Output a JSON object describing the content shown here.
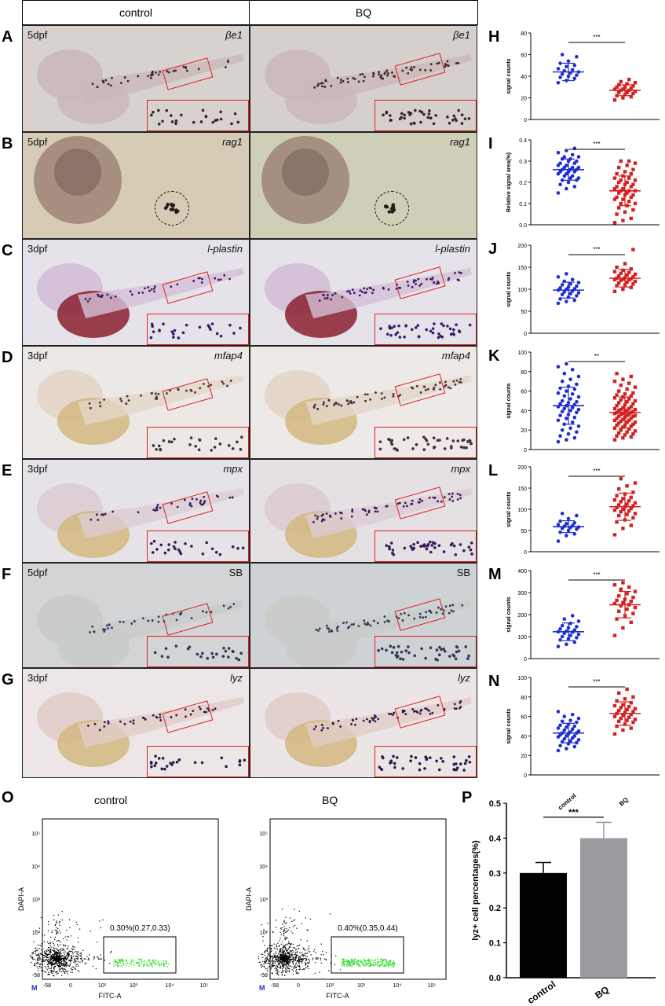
{
  "columns": {
    "control": "control",
    "treatment": "BQ"
  },
  "rows": [
    {
      "label": "A",
      "stage": "5dpf",
      "gene": "βe1",
      "gene_italic": true,
      "control_bg": "#d8d2cf",
      "treat_bg": "#d6d0cd",
      "embryo": "#cbb8b8",
      "stain": "#3a2230"
    },
    {
      "label": "B",
      "stage": "5dpf",
      "gene": "rag1",
      "gene_italic": true,
      "control_bg": "#d6cbb5",
      "treat_bg": "#cfcfb8",
      "embryo": "#9a8070",
      "stain": "#2a1a1a"
    },
    {
      "label": "C",
      "stage": "3dpf",
      "gene": "l-plastin",
      "gene_italic": true,
      "control_bg": "#e6e2ea",
      "treat_bg": "#e6e2ea",
      "embryo": "#d4bfd6",
      "stain": "#3a1a6a"
    },
    {
      "label": "D",
      "stage": "3dpf",
      "gene": "mfap4",
      "gene_italic": true,
      "control_bg": "#ece8e6",
      "treat_bg": "#ece9e6",
      "embryo": "#e4d6c8",
      "stain": "#4a2a40"
    },
    {
      "label": "E",
      "stage": "3dpf",
      "gene": "mpx",
      "gene_italic": true,
      "control_bg": "#e6e3e8",
      "treat_bg": "#e4e0e4",
      "embryo": "#dcccd4",
      "stain": "#3a1a5a"
    },
    {
      "label": "F",
      "stage": "5dpf",
      "gene": "SB",
      "gene_italic": false,
      "control_bg": "#d2d4d6",
      "treat_bg": "#cfd2d4",
      "embryo": "#c8cbc8",
      "stain": "#2a3a5a"
    },
    {
      "label": "G",
      "stage": "3dpf",
      "gene": "lyz",
      "gene_italic": true,
      "control_bg": "#ece6e6",
      "treat_bg": "#ebe5e5",
      "embryo": "#e2ccc8",
      "stain": "#2a1a4a"
    }
  ],
  "scatter_panels": [
    {
      "label": "H",
      "ylabel": "signal counts",
      "ylim": [
        0,
        80
      ],
      "yticks": [
        "0",
        "20",
        "40",
        "60",
        "80"
      ],
      "sig": "***",
      "control": {
        "mean": 44,
        "sd": 8,
        "n": 18,
        "values": [
          34,
          36,
          38,
          39,
          40,
          41,
          42,
          43,
          44,
          45,
          46,
          47,
          49,
          50,
          52,
          54,
          58,
          60
        ]
      },
      "treatment": {
        "mean": 27,
        "sd": 5,
        "n": 22,
        "values": [
          18,
          20,
          21,
          22,
          23,
          24,
          25,
          25,
          26,
          27,
          27,
          28,
          28,
          29,
          30,
          30,
          31,
          32,
          33,
          34,
          35,
          37
        ]
      }
    },
    {
      "label": "I",
      "ylabel": "Relative signal area(%)",
      "ylim": [
        0,
        0.4
      ],
      "yticks": [
        "0.0",
        "0.1",
        "0.2",
        "0.3",
        "0.4"
      ],
      "sig": "***",
      "control": {
        "mean": 0.26,
        "sd": 0.05,
        "n": 36,
        "values": [
          0.15,
          0.17,
          0.18,
          0.19,
          0.2,
          0.21,
          0.21,
          0.22,
          0.22,
          0.23,
          0.23,
          0.24,
          0.24,
          0.25,
          0.25,
          0.25,
          0.26,
          0.26,
          0.26,
          0.27,
          0.27,
          0.27,
          0.28,
          0.28,
          0.29,
          0.29,
          0.3,
          0.3,
          0.31,
          0.31,
          0.32,
          0.32,
          0.33,
          0.34,
          0.35,
          0.36
        ]
      },
      "treatment": {
        "mean": 0.16,
        "sd": 0.07,
        "n": 44,
        "values": [
          0.01,
          0.02,
          0.03,
          0.05,
          0.06,
          0.07,
          0.08,
          0.09,
          0.1,
          0.1,
          0.11,
          0.12,
          0.12,
          0.13,
          0.13,
          0.14,
          0.14,
          0.15,
          0.15,
          0.16,
          0.16,
          0.16,
          0.17,
          0.17,
          0.18,
          0.18,
          0.19,
          0.19,
          0.2,
          0.2,
          0.21,
          0.21,
          0.22,
          0.22,
          0.23,
          0.24,
          0.24,
          0.25,
          0.26,
          0.27,
          0.28,
          0.29,
          0.3,
          0.3
        ]
      }
    },
    {
      "label": "J",
      "ylabel": "signal counts",
      "ylim": [
        0,
        200
      ],
      "yticks": [
        "0",
        "50",
        "100",
        "150",
        "200"
      ],
      "sig": "***",
      "control": {
        "mean": 98,
        "sd": 18,
        "n": 24,
        "values": [
          68,
          72,
          75,
          78,
          82,
          85,
          88,
          90,
          92,
          94,
          96,
          98,
          100,
          101,
          103,
          105,
          107,
          110,
          112,
          115,
          118,
          122,
          128,
          135
        ]
      },
      "treatment": {
        "mean": 125,
        "sd": 20,
        "n": 28,
        "values": [
          95,
          100,
          104,
          108,
          110,
          112,
          114,
          116,
          118,
          120,
          121,
          122,
          123,
          124,
          125,
          126,
          128,
          130,
          132,
          134,
          136,
          138,
          140,
          143,
          146,
          150,
          158,
          190
        ]
      }
    },
    {
      "label": "K",
      "ylabel": "signal counts",
      "ylim": [
        0,
        100
      ],
      "yticks": [
        "0",
        "20",
        "40",
        "60",
        "80",
        "100"
      ],
      "sig": "**",
      "control": {
        "mean": 45,
        "sd": 19,
        "n": 46,
        "values": [
          8,
          10,
          12,
          14,
          16,
          18,
          20,
          22,
          24,
          26,
          28,
          30,
          32,
          33,
          35,
          36,
          38,
          39,
          40,
          41,
          42,
          43,
          44,
          45,
          46,
          47,
          48,
          49,
          50,
          52,
          54,
          55,
          57,
          58,
          60,
          62,
          63,
          65,
          67,
          70,
          72,
          75,
          78,
          82,
          85,
          88
        ]
      },
      "treatment": {
        "mean": 38,
        "sd": 16,
        "n": 70,
        "values": [
          10,
          12,
          13,
          14,
          15,
          16,
          17,
          18,
          19,
          20,
          21,
          22,
          23,
          24,
          25,
          25,
          26,
          27,
          28,
          28,
          29,
          30,
          30,
          31,
          32,
          32,
          33,
          34,
          34,
          35,
          35,
          36,
          36,
          37,
          37,
          38,
          38,
          39,
          39,
          40,
          40,
          41,
          41,
          42,
          42,
          43,
          44,
          45,
          46,
          47,
          48,
          49,
          50,
          51,
          52,
          53,
          54,
          55,
          56,
          57,
          58,
          60,
          62,
          64,
          66,
          68,
          70,
          72,
          75,
          78
        ]
      }
    },
    {
      "label": "L",
      "ylabel": "signal counts",
      "ylim": [
        0,
        200
      ],
      "yticks": [
        "0",
        "50",
        "100",
        "150",
        "200"
      ],
      "sig": "***",
      "control": {
        "mean": 59,
        "sd": 14,
        "n": 18,
        "values": [
          25,
          38,
          42,
          46,
          50,
          53,
          55,
          57,
          58,
          60,
          62,
          64,
          66,
          68,
          72,
          78,
          85,
          90
        ]
      },
      "treatment": {
        "mean": 106,
        "sd": 32,
        "n": 32,
        "values": [
          40,
          55,
          62,
          70,
          75,
          80,
          85,
          88,
          90,
          94,
          96,
          98,
          100,
          102,
          104,
          106,
          108,
          110,
          112,
          115,
          118,
          120,
          122,
          125,
          128,
          132,
          136,
          140,
          148,
          155,
          162,
          172
        ]
      }
    },
    {
      "label": "M",
      "ylabel": "signal counts",
      "ylim": [
        0,
        400
      ],
      "yticks": [
        "0",
        "100",
        "200",
        "300",
        "400"
      ],
      "sig": "***",
      "control": {
        "mean": 122,
        "sd": 40,
        "n": 22,
        "values": [
          55,
          65,
          75,
          85,
          90,
          95,
          100,
          105,
          110,
          115,
          120,
          122,
          125,
          130,
          135,
          140,
          145,
          150,
          160,
          170,
          180,
          195
        ]
      },
      "treatment": {
        "mean": 245,
        "sd": 60,
        "n": 24,
        "values": [
          105,
          140,
          165,
          180,
          195,
          205,
          215,
          225,
          232,
          240,
          245,
          250,
          255,
          260,
          265,
          270,
          278,
          285,
          295,
          305,
          315,
          325,
          335,
          345
        ]
      }
    },
    {
      "label": "N",
      "ylabel": "signal counts",
      "ylim": [
        0,
        100
      ],
      "yticks": [
        "0",
        "20",
        "40",
        "60",
        "80",
        "100"
      ],
      "sig": "***",
      "control": {
        "mean": 43,
        "sd": 10,
        "n": 34,
        "values": [
          25,
          27,
          29,
          30,
          32,
          33,
          34,
          35,
          36,
          37,
          38,
          39,
          40,
          40,
          41,
          42,
          43,
          43,
          44,
          45,
          46,
          47,
          48,
          49,
          50,
          51,
          52,
          54,
          55,
          56,
          58,
          60,
          62,
          65
        ]
      },
      "treatment": {
        "mean": 63,
        "sd": 12,
        "n": 30,
        "values": [
          42,
          46,
          48,
          50,
          52,
          54,
          55,
          56,
          57,
          58,
          59,
          60,
          61,
          62,
          63,
          64,
          65,
          66,
          67,
          68,
          69,
          70,
          71,
          72,
          74,
          76,
          78,
          80,
          84,
          88
        ]
      }
    }
  ],
  "scatter_xlabels": [
    "control",
    "BQ"
  ],
  "flow": {
    "label": "O",
    "xaxis": "FITC-A",
    "yaxis": "DAPI-A",
    "gate_letter": "M",
    "xticks": [
      "-58",
      "0",
      "10²",
      "10³",
      "10⁴",
      "10⁵"
    ],
    "yticks": [
      "-58",
      "0",
      "10²",
      "10³",
      "10⁴",
      "10⁵"
    ],
    "plots": [
      {
        "title": "control",
        "gate_text": "0.30%(0.27,0.33)"
      },
      {
        "title": "BQ",
        "gate_text": "0.40%(0.35,0.44)"
      }
    ]
  },
  "chart_data": {
    "type": "bar",
    "label": "P",
    "categories": [
      "control",
      "BQ"
    ],
    "values": [
      0.3,
      0.4
    ],
    "errors": [
      0.03,
      0.045
    ],
    "ylabel": "lyz+ cell percentages(%)",
    "ylim": [
      0,
      0.5
    ],
    "yticks": [
      "0.0",
      "0.1",
      "0.2",
      "0.3",
      "0.4",
      "0.5"
    ],
    "sig": "***",
    "colors": [
      "#000000",
      "#9a9a9f"
    ]
  },
  "colors": {
    "control_dots": "#1f2fcf",
    "treat_dots": "#d42020",
    "roi": "#e0201c",
    "gate_cells": "#22dd22"
  }
}
